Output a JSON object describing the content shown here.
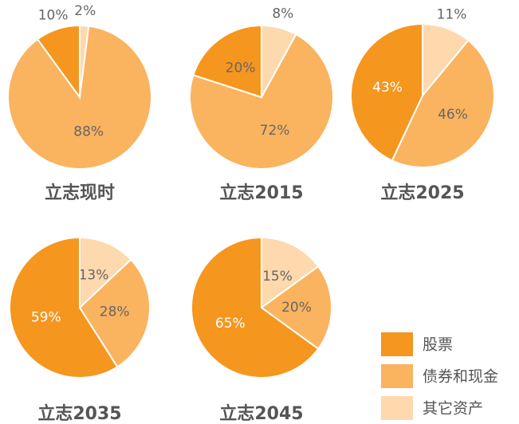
{
  "chart_data": [
    {
      "type": "pie",
      "title": "立志现时",
      "categories": [
        "股票",
        "债券和现金",
        "其它资产"
      ],
      "values": [
        10,
        88,
        2
      ],
      "value_labels": [
        "10%",
        "88%",
        "2%"
      ],
      "colors": [
        "#f5961e",
        "#fab35e",
        "#fdd9ad"
      ]
    },
    {
      "type": "pie",
      "title": "立志2015",
      "categories": [
        "股票",
        "债券和现金",
        "其它资产"
      ],
      "values": [
        20,
        72,
        8
      ],
      "value_labels": [
        "20%",
        "72%",
        "8%"
      ],
      "colors": [
        "#f5961e",
        "#fab35e",
        "#fdd9ad"
      ]
    },
    {
      "type": "pie",
      "title": "立志2025",
      "categories": [
        "股票",
        "债券和现金",
        "其它资产"
      ],
      "values": [
        43,
        46,
        11
      ],
      "value_labels": [
        "43%",
        "46%",
        "11%"
      ],
      "colors": [
        "#f5961e",
        "#fab35e",
        "#fdd9ad"
      ]
    },
    {
      "type": "pie",
      "title": "立志2035",
      "categories": [
        "股票",
        "债券和现金",
        "其它资产"
      ],
      "values": [
        59,
        28,
        13
      ],
      "value_labels": [
        "59%",
        "28%",
        "13%"
      ],
      "colors": [
        "#f5961e",
        "#fab35e",
        "#fdd9ad"
      ]
    },
    {
      "type": "pie",
      "title": "立志2045",
      "categories": [
        "股票",
        "债券和现金",
        "其它资产"
      ],
      "values": [
        65,
        20,
        15
      ],
      "value_labels": [
        "65%",
        "20%",
        "15%"
      ],
      "colors": [
        "#f5961e",
        "#fab35e",
        "#fdd9ad"
      ]
    }
  ]
}
